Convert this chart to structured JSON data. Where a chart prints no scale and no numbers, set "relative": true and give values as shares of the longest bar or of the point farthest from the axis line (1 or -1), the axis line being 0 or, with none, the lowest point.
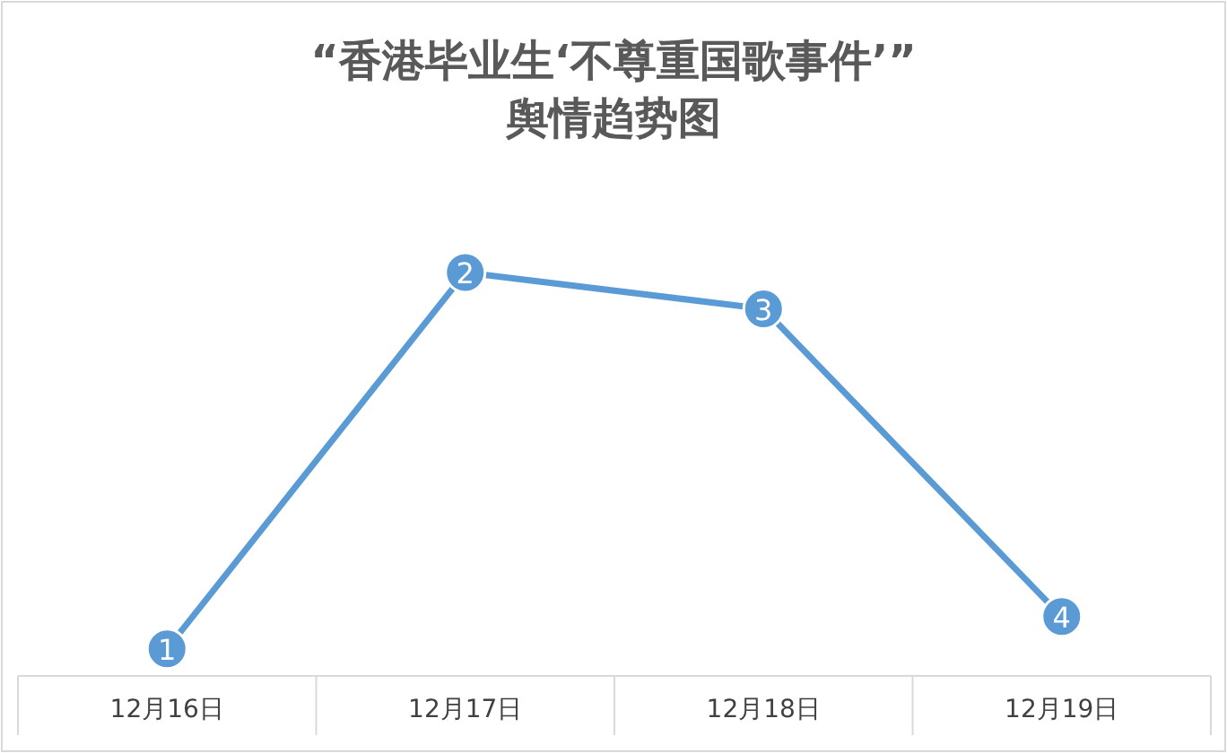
{
  "chart_data": {
    "type": "line",
    "title": "“香港毕业生‘不尊重国歌事件’”",
    "subtitle": "舆情趋势图",
    "categories": [
      "12月16日",
      "12月17日",
      "12月18日",
      "12月19日"
    ],
    "values": [
      0.067,
      1,
      0.91,
      0.147
    ],
    "relative": true,
    "color": "#5b9bd5",
    "marker": "circle",
    "annotations": [
      {
        "text": "1",
        "x": "12月16日",
        "y": 0.067
      },
      {
        "text": "2",
        "x": "12月17日",
        "y": 1
      },
      {
        "text": "3",
        "x": "12月18日",
        "y": 0.91
      },
      {
        "text": "4",
        "x": "12月19日",
        "y": 0.147
      }
    ]
  }
}
